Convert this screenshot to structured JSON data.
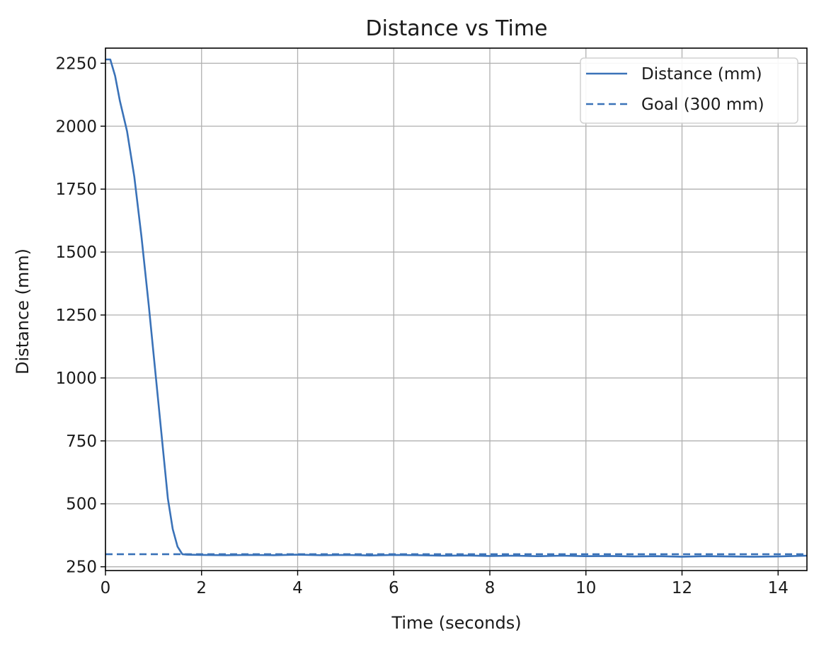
{
  "chart_data": {
    "type": "line",
    "title": "Distance vs Time",
    "xlabel": "Time (seconds)",
    "ylabel": "Distance (mm)",
    "xlim": [
      0,
      14.6
    ],
    "ylim": [
      235,
      2310
    ],
    "xticks": [
      "0",
      "2",
      "4",
      "6",
      "8",
      "10",
      "12",
      "14"
    ],
    "yticks": [
      "250",
      "500",
      "750",
      "1000",
      "1250",
      "1500",
      "1750",
      "2000",
      "2250"
    ],
    "grid": true,
    "legend_placement": "top-right",
    "colors": {
      "series": "#3a72b8",
      "grid": "#b0b0b0",
      "axis": "#000000"
    },
    "series": [
      {
        "name": "Distance (mm)",
        "style": "solid",
        "x": [
          0,
          0.1,
          0.2,
          0.3,
          0.45,
          0.6,
          0.75,
          0.9,
          1.05,
          1.2,
          1.3,
          1.4,
          1.5,
          1.6,
          1.7,
          2,
          2.5,
          3,
          3.5,
          4,
          4.5,
          5,
          5.5,
          6,
          6.5,
          7,
          7.5,
          8,
          8.5,
          9,
          9.5,
          10,
          10.5,
          11,
          11.5,
          12,
          12.5,
          13,
          13.5,
          14,
          14.6
        ],
        "y": [
          2265,
          2265,
          2200,
          2100,
          1980,
          1800,
          1560,
          1290,
          1000,
          710,
          520,
          400,
          330,
          300,
          298,
          297,
          296,
          297,
          296,
          298,
          296,
          297,
          295,
          297,
          296,
          294,
          295,
          293,
          294,
          292,
          294,
          292,
          293,
          291,
          292,
          290,
          292,
          291,
          290,
          291,
          294
        ]
      },
      {
        "name": "Goal (300 mm)",
        "style": "dashed",
        "x": [
          0,
          14.6
        ],
        "y": [
          300,
          300
        ]
      }
    ]
  }
}
